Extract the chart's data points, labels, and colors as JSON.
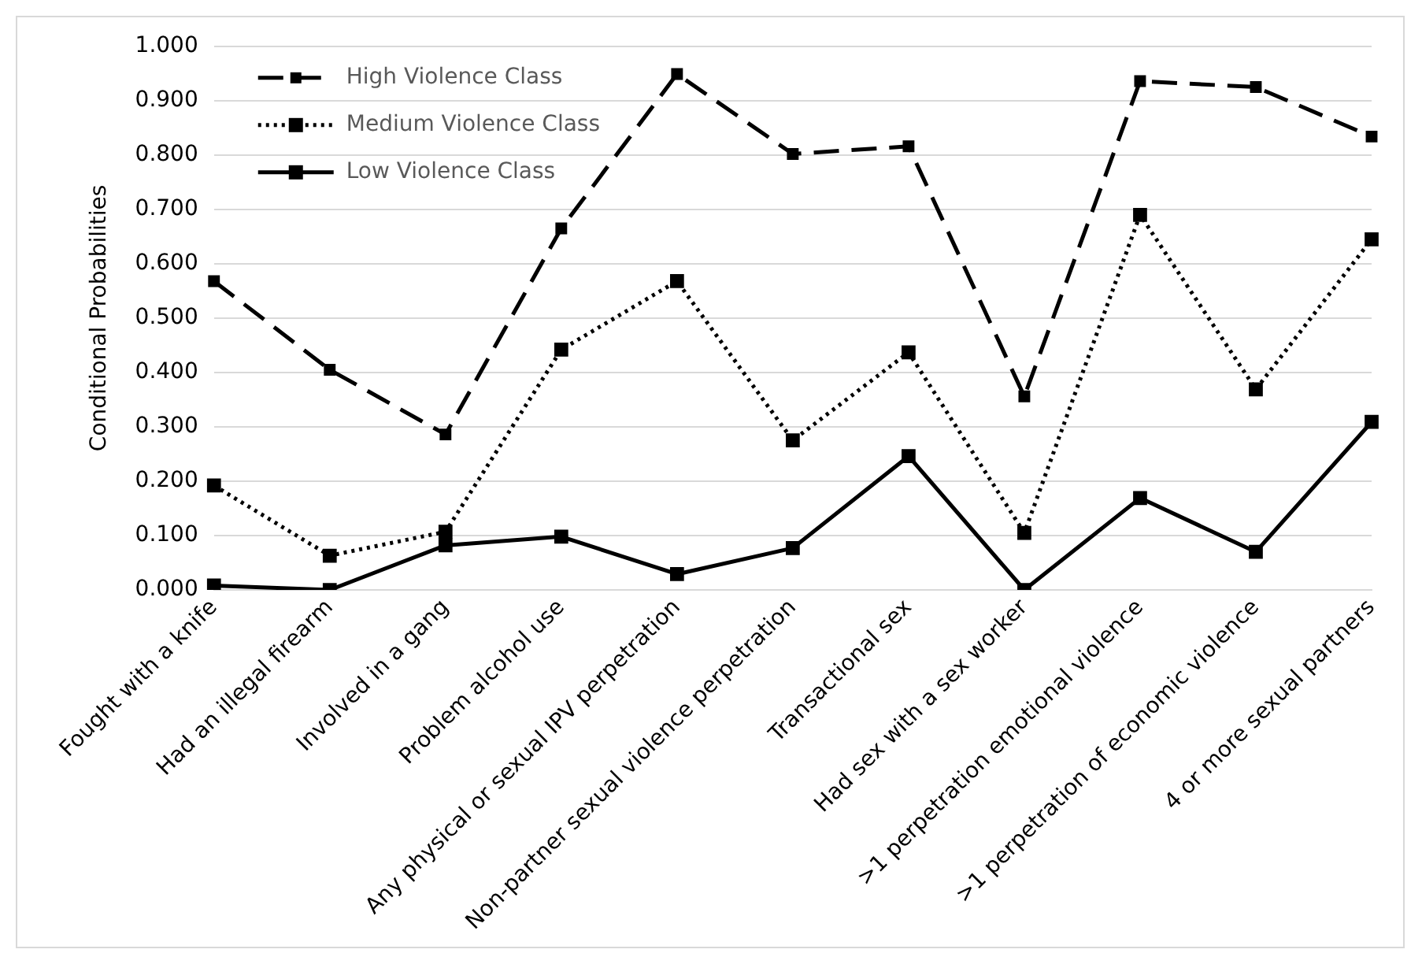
{
  "chart_data": {
    "type": "line",
    "ylabel": "Conditional Probabilities",
    "categories": [
      "Fought with a knife",
      "Had an illegal firearm",
      "Involved in a gang",
      "Problem alcohol use",
      "Any physical or sexual IPV perpetration",
      "Non-partner sexual violence perpetration",
      "Transactional sex",
      "Had sex with a sex worker",
      ">1 perpetration emotional violence",
      ">1 perpetration of economic violence",
      "4 or more sexual partners"
    ],
    "series": [
      {
        "name": "High Violence Class",
        "color": "#000000",
        "line_style": "dashed",
        "values": [
          0.568,
          0.405,
          0.286,
          0.665,
          0.949,
          0.802,
          0.816,
          0.356,
          0.936,
          0.925,
          0.834
        ]
      },
      {
        "name": "Medium Violence Class",
        "color": "#000000",
        "line_style": "dotted",
        "values": [
          0.192,
          0.063,
          0.107,
          0.442,
          0.568,
          0.275,
          0.437,
          0.105,
          0.69,
          0.369,
          0.645
        ]
      },
      {
        "name": "Low Violence Class",
        "color": "#000000",
        "line_style": "solid",
        "values": [
          0.008,
          0.0,
          0.082,
          0.098,
          0.029,
          0.077,
          0.246,
          0.0,
          0.169,
          0.07,
          0.309
        ]
      }
    ],
    "ylim": [
      0,
      1
    ],
    "yticks": [
      {
        "value": 0,
        "label": "0.000"
      },
      {
        "value": 0.1,
        "label": "0.100"
      },
      {
        "value": 0.2,
        "label": "0.200"
      },
      {
        "value": 0.3,
        "label": "0.300"
      },
      {
        "value": 0.4,
        "label": "0.400"
      },
      {
        "value": 0.5,
        "label": "0.500"
      },
      {
        "value": 0.6,
        "label": "0.600"
      },
      {
        "value": 0.7,
        "label": "0.700"
      },
      {
        "value": 0.8,
        "label": "0.800"
      },
      {
        "value": 0.9,
        "label": "0.900"
      },
      {
        "value": 1,
        "label": "1.000"
      }
    ],
    "grid": "y",
    "legend": "top left",
    "marker": "square"
  }
}
